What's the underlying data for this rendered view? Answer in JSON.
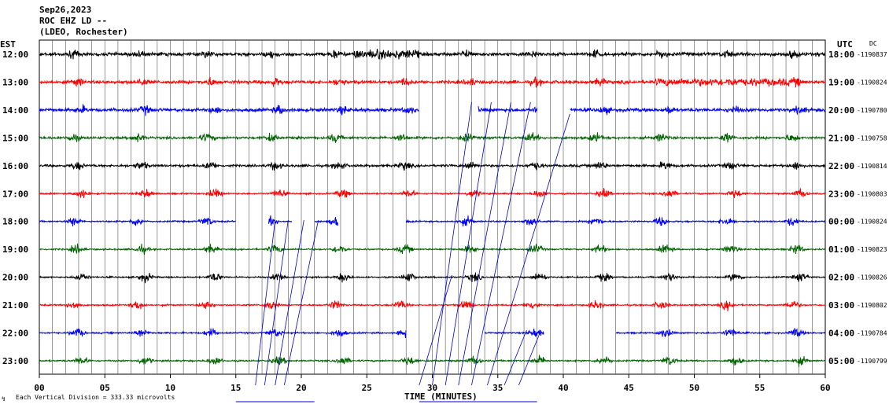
{
  "header": {
    "date": "Sep26,2023",
    "station": "ROC EHZ LD --",
    "network": "(LDEO, Rochester)",
    "left_zone": "EST",
    "right_zone": "UTC",
    "dc_label": "DC"
  },
  "footer": {
    "xlabel": "TIME (MINUTES)",
    "scale_note": "Each Vertical Division =  333.33 microvolts"
  },
  "colors": {
    "line_colors": [
      "#000000",
      "#ff0000",
      "#0000ff",
      "#006400"
    ],
    "grid": "#000000",
    "glitch": "#0000cc"
  },
  "chart_data": {
    "type": "line",
    "xlabel": "TIME (MINUTES)",
    "xlim": [
      0,
      60
    ],
    "x_ticks": [
      "00",
      "05",
      "10",
      "15",
      "20",
      "25",
      "30",
      "35",
      "40",
      "45",
      "50",
      "55",
      "60"
    ],
    "rows": [
      {
        "est": "12:00",
        "utc": "18:00",
        "dc": "-1190837",
        "color": "#000000",
        "level": "high",
        "gaps": []
      },
      {
        "est": "13:00",
        "utc": "19:00",
        "dc": "-1190824",
        "color": "#ff0000",
        "level": "high",
        "gaps": []
      },
      {
        "est": "14:00",
        "utc": "20:00",
        "dc": "-1190780",
        "color": "#0000ff",
        "level": "high",
        "gaps": [
          [
            29,
            33.5
          ],
          [
            38,
            40.5
          ]
        ]
      },
      {
        "est": "15:00",
        "utc": "21:00",
        "dc": "-1190758",
        "color": "#006400",
        "level": "mid",
        "gaps": []
      },
      {
        "est": "16:00",
        "utc": "22:00",
        "dc": "-1190814",
        "color": "#000000",
        "level": "mid",
        "gaps": []
      },
      {
        "est": "17:00",
        "utc": "23:00",
        "dc": "-1190803",
        "color": "#ff0000",
        "level": "bursts",
        "gaps": []
      },
      {
        "est": "18:00",
        "utc": "00:00",
        "dc": "-1190824",
        "color": "#0000ff",
        "level": "bursts",
        "gaps": [
          [
            15,
            17.5
          ],
          [
            19.3,
            21
          ],
          [
            22.8,
            28
          ]
        ]
      },
      {
        "est": "19:00",
        "utc": "01:00",
        "dc": "-1190823",
        "color": "#006400",
        "level": "bursts",
        "gaps": []
      },
      {
        "est": "20:00",
        "utc": "02:00",
        "dc": "-1190826",
        "color": "#000000",
        "level": "bursts",
        "gaps": []
      },
      {
        "est": "21:00",
        "utc": "03:00",
        "dc": "-1190802",
        "color": "#ff0000",
        "level": "bursts",
        "gaps": []
      },
      {
        "est": "22:00",
        "utc": "04:00",
        "dc": "-1190784",
        "color": "#0000ff",
        "level": "bursts",
        "gaps": [
          [
            28,
            34
          ],
          [
            38.5,
            44
          ]
        ]
      },
      {
        "est": "23:00",
        "utc": "05:00",
        "dc": "-1190799",
        "color": "#006400",
        "level": "bursts",
        "gaps": []
      }
    ]
  }
}
